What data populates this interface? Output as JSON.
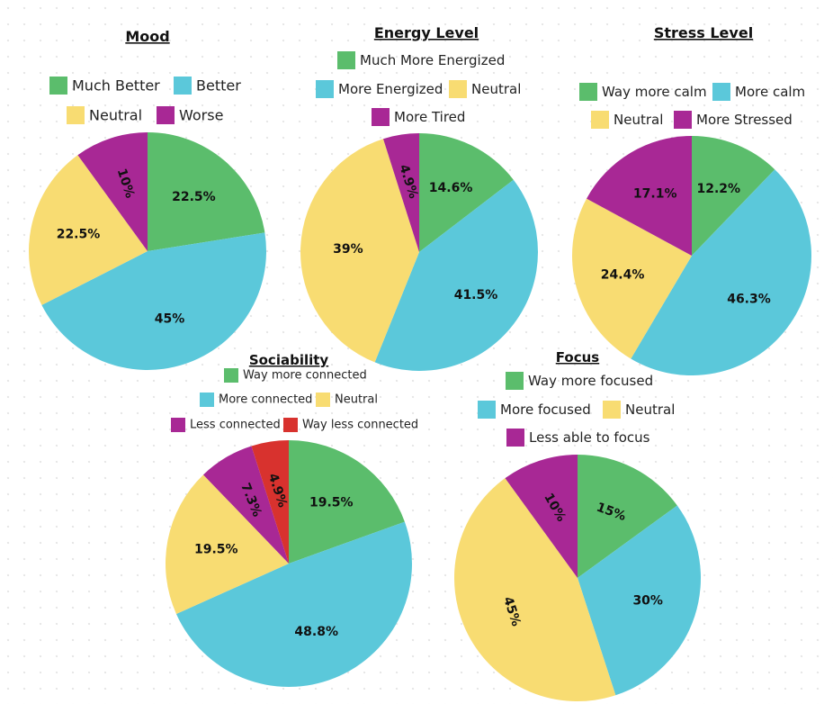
{
  "colors": {
    "green": "#5bbd6c",
    "blue": "#5bc8da",
    "yellow": "#f8dc72",
    "purple": "#a82895",
    "red": "#d8322e"
  },
  "chart_data": [
    {
      "type": "pie",
      "title": "Mood",
      "slices": [
        {
          "label": "Much Better",
          "value": 22.5,
          "text": "22.5%",
          "color": "#5bbd6c"
        },
        {
          "label": "Better",
          "value": 45,
          "text": "45%",
          "color": "#5bc8da"
        },
        {
          "label": "Neutral",
          "value": 22.5,
          "text": "22.5%",
          "color": "#f8dc72"
        },
        {
          "label": "Worse",
          "value": 10,
          "text": "10%",
          "color": "#a82895"
        }
      ]
    },
    {
      "type": "pie",
      "title": "Energy Level",
      "slices": [
        {
          "label": "Much More Energized",
          "value": 14.6,
          "text": "14.6%",
          "color": "#5bbd6c"
        },
        {
          "label": "More Energized",
          "value": 41.5,
          "text": "41.5%",
          "color": "#5bc8da"
        },
        {
          "label": "Neutral",
          "value": 39,
          "text": "39%",
          "color": "#f8dc72"
        },
        {
          "label": "More Tired",
          "value": 4.9,
          "text": "4.9%",
          "color": "#a82895"
        }
      ]
    },
    {
      "type": "pie",
      "title": "Stress Level",
      "slices": [
        {
          "label": "Way more calm",
          "value": 12.2,
          "text": "12.2%",
          "color": "#5bbd6c"
        },
        {
          "label": "More calm",
          "value": 46.3,
          "text": "46.3%",
          "color": "#5bc8da"
        },
        {
          "label": "Neutral",
          "value": 24.4,
          "text": "24.4%",
          "color": "#f8dc72"
        },
        {
          "label": "More Stressed",
          "value": 17.1,
          "text": "17.1%",
          "color": "#a82895"
        }
      ]
    },
    {
      "type": "pie",
      "title": "Sociability",
      "slices": [
        {
          "label": "Way more connected",
          "value": 19.5,
          "text": "19.5%",
          "color": "#5bbd6c"
        },
        {
          "label": "More connected",
          "value": 48.8,
          "text": "48.8%",
          "color": "#5bc8da"
        },
        {
          "label": "Neutral",
          "value": 19.5,
          "text": "19.5%",
          "color": "#f8dc72"
        },
        {
          "label": "Less connected",
          "value": 7.3,
          "text": "7.3%",
          "color": "#a82895"
        },
        {
          "label": "Way less connected",
          "value": 4.9,
          "text": "4.9%",
          "color": "#d8322e"
        }
      ]
    },
    {
      "type": "pie",
      "title": "Focus",
      "slices": [
        {
          "label": "Way more focused",
          "value": 15,
          "text": "15%",
          "color": "#5bbd6c"
        },
        {
          "label": "More focused",
          "value": 30,
          "text": "30%",
          "color": "#5bc8da"
        },
        {
          "label": "Neutral",
          "value": 45,
          "text": "45%",
          "color": "#f8dc72"
        },
        {
          "label": "Less able to focus",
          "value": 10,
          "text": "10%",
          "color": "#a82895"
        }
      ]
    }
  ]
}
